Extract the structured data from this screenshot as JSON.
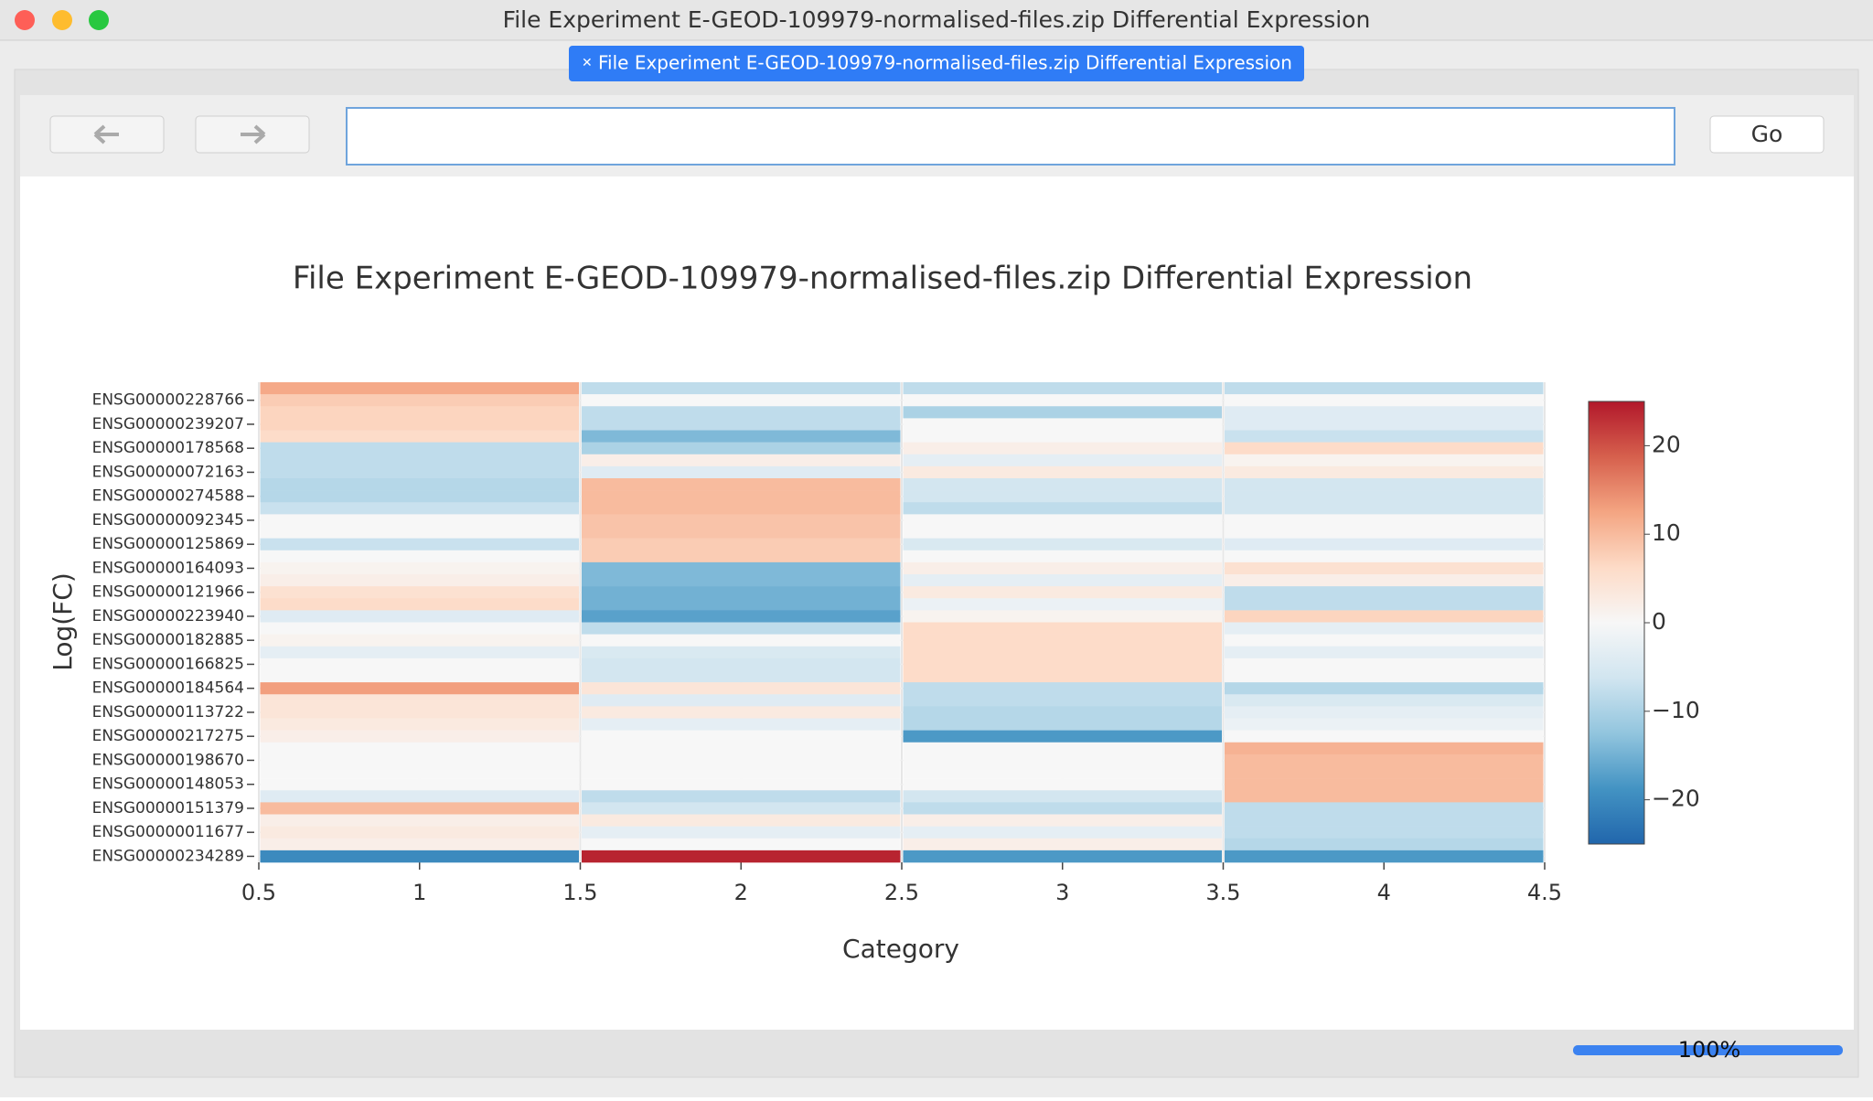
{
  "window_title": "File Experiment E-GEOD-109979-normalised-files.zip Differential Expression",
  "tab_label": "File Experiment E-GEOD-109979-normalised-files.zip Differential Expression",
  "go_button": "Go",
  "progress_label": "100%",
  "chart_data": {
    "type": "heatmap",
    "title": "File Experiment E-GEOD-109979-normalised-files.zip Differential Expression",
    "x_label": "Category",
    "y_label": "Log(FC)",
    "x": [
      1,
      2,
      3,
      4
    ],
    "y": [
      null,
      "ENSG00000228766",
      null,
      "ENSG00000239207",
      null,
      "ENSG00000178568",
      null,
      "ENSG00000072163",
      null,
      "ENSG00000274588",
      null,
      "ENSG00000092345",
      null,
      "ENSG00000125869",
      null,
      "ENSG00000164093",
      null,
      "ENSG00000121966",
      null,
      "ENSG00000223940",
      null,
      "ENSG00000182885",
      null,
      "ENSG00000166825",
      null,
      "ENSG00000184564",
      null,
      "ENSG00000113722",
      null,
      "ENSG00000217275",
      null,
      "ENSG00000198670",
      null,
      "ENSG00000148053",
      null,
      "ENSG00000151379",
      null,
      "ENSG00000011677",
      null,
      "ENSG00000234289"
    ],
    "z": [
      [
        12,
        -8,
        -8,
        -8
      ],
      [
        8,
        0,
        0,
        0
      ],
      [
        7,
        -8,
        -10,
        -4
      ],
      [
        7,
        -8,
        0,
        -4
      ],
      [
        6,
        -14,
        0,
        -7
      ],
      [
        -8,
        -10,
        2,
        6
      ],
      [
        -8,
        2,
        -3,
        1
      ],
      [
        -8,
        -4,
        3,
        3
      ],
      [
        -9,
        10,
        -6,
        -6
      ],
      [
        -9,
        10,
        -6,
        -6
      ],
      [
        -7,
        10,
        -8,
        -6
      ],
      [
        0,
        9,
        0,
        0
      ],
      [
        0,
        9,
        0,
        0
      ],
      [
        -7,
        8,
        -5,
        -4
      ],
      [
        0,
        8,
        0,
        0
      ],
      [
        1,
        -14,
        2,
        5
      ],
      [
        2,
        -14,
        -3,
        2
      ],
      [
        5,
        -15,
        3,
        -8
      ],
      [
        6,
        -15,
        -2,
        -8
      ],
      [
        -4,
        -17,
        1,
        7
      ],
      [
        0,
        -8,
        6,
        -3
      ],
      [
        1,
        0,
        6,
        0
      ],
      [
        -3,
        -5,
        6,
        -3
      ],
      [
        0,
        -6,
        6,
        0
      ],
      [
        0,
        -6,
        6,
        0
      ],
      [
        13,
        4,
        -8,
        -9
      ],
      [
        4,
        -4,
        -8,
        -5
      ],
      [
        4,
        3,
        -9,
        -3
      ],
      [
        3,
        -3,
        -9,
        -2
      ],
      [
        2,
        0,
        -18,
        0
      ],
      [
        0,
        0,
        0,
        11
      ],
      [
        0,
        0,
        0,
        10
      ],
      [
        0,
        0,
        0,
        10
      ],
      [
        0,
        0,
        0,
        10
      ],
      [
        -4,
        -8,
        -6,
        10
      ],
      [
        10,
        -6,
        -8,
        -8
      ],
      [
        2,
        3,
        2,
        -8
      ],
      [
        3,
        -3,
        -3,
        -8
      ],
      [
        2,
        0,
        2,
        -9
      ],
      [
        -20,
        24,
        -18,
        -18
      ]
    ],
    "xlim": [
      0.5,
      4.5
    ],
    "xticks": [
      0.5,
      1,
      1.5,
      2,
      2.5,
      3,
      3.5,
      4,
      4.5
    ],
    "zlim": [
      -25,
      25
    ],
    "zticks": [
      {
        "value": 20,
        "label": "20"
      },
      {
        "value": 10,
        "label": "10"
      },
      {
        "value": 0,
        "label": "0"
      },
      {
        "value": -10,
        "label": "−10"
      },
      {
        "value": -20,
        "label": "−20"
      }
    ],
    "colorscale": [
      "#2166ac",
      "#4393c3",
      "#92c5de",
      "#d1e5f0",
      "#f7f7f7",
      "#fddbc7",
      "#f4a582",
      "#d6604d",
      "#b2182b"
    ],
    "grid": true
  }
}
